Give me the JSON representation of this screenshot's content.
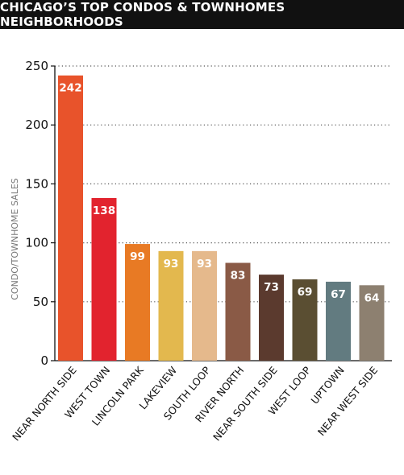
{
  "chart_data": {
    "type": "bar",
    "title": "CHICAGO’S TOP CONDOS & TOWNHOMES NEIGHBORHOODS",
    "xlabel": "",
    "ylabel": "CONDO/TOWNHOME SALES",
    "ylim": [
      0,
      250
    ],
    "yticks": [
      0,
      50,
      100,
      150,
      200,
      250
    ],
    "grid": true,
    "categories": [
      "NEAR NORTH SIDE",
      "WEST TOWN",
      "LINCOLN PARK",
      "LAKEVIEW",
      "SOUTH LOOP",
      "RIVER NORTH",
      "NEAR SOUTH SIDE",
      "WEST LOOP",
      "UPTOWN",
      "NEAR WEST SIDE"
    ],
    "values": [
      242,
      138,
      99,
      93,
      93,
      83,
      73,
      69,
      67,
      64
    ],
    "colors": [
      "#E8532B",
      "#E2232E",
      "#E87A24",
      "#E3B84E",
      "#E5B98C",
      "#8A5A46",
      "#5B3A2E",
      "#5A4E32",
      "#627B80",
      "#8D8070"
    ]
  }
}
